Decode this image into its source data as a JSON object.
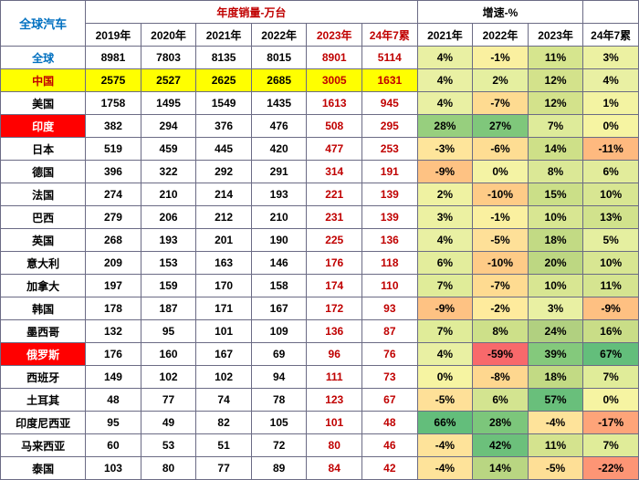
{
  "title_cell": "全球汽车",
  "group_headers": {
    "sales": "年度销量-万台",
    "growth": "增速-%",
    "blank": ""
  },
  "year_cols": {
    "sales": [
      "2019年",
      "2020年",
      "2021年",
      "2022年",
      "2023年",
      "24年7累"
    ],
    "growth": [
      "2021年",
      "2022年",
      "2023年",
      "24年7累"
    ]
  },
  "sales_red_cols": [
    4,
    5
  ],
  "rows": [
    {
      "name": "全球",
      "name_style": {
        "bg": "#ffffff",
        "fg": "#0070c0"
      },
      "sales": [
        8981,
        7803,
        8135,
        8015,
        8901,
        5114
      ],
      "growth": [
        "4%",
        "-1%",
        "11%",
        "3%"
      ],
      "gcol": [
        "#e9f0a3",
        "#faf0a0",
        "#d6e58e",
        "#ecf1a2"
      ]
    },
    {
      "name": "中国",
      "name_style": {
        "bg": "#ffff00",
        "fg": "#c00000"
      },
      "row_bg": "#ffff00",
      "sales": [
        2575,
        2527,
        2625,
        2685,
        3005,
        1631
      ],
      "growth": [
        "4%",
        "2%",
        "12%",
        "4%"
      ],
      "gcol": [
        "#e9f0a3",
        "#e5efa0",
        "#d3e28b",
        "#e9f0a3"
      ]
    },
    {
      "name": "美国",
      "name_style": {
        "bg": "#ffffff",
        "fg": "#000"
      },
      "sales": [
        1758,
        1495,
        1549,
        1435,
        1613,
        945
      ],
      "growth": [
        "4%",
        "-7%",
        "12%",
        "1%"
      ],
      "gcol": [
        "#e9f0a3",
        "#fedb91",
        "#d3e28b",
        "#f3f3a2"
      ]
    },
    {
      "name": "印度",
      "name_style": {
        "bg": "#ff0000",
        "fg": "#ffffff"
      },
      "sales": [
        382,
        294,
        376,
        476,
        508,
        295
      ],
      "growth": [
        "28%",
        "27%",
        "7%",
        "0%"
      ],
      "gcol": [
        "#97cf7e",
        "#7fc77b",
        "#deeb9a",
        "#f6f4a2"
      ]
    },
    {
      "name": "日本",
      "name_style": {
        "bg": "#ffffff",
        "fg": "#000"
      },
      "sales": [
        519,
        459,
        445,
        420,
        477,
        253
      ],
      "growth": [
        "-3%",
        "-6%",
        "14%",
        "-11%"
      ],
      "gcol": [
        "#fee59b",
        "#fedd93",
        "#cee088",
        "#feb97f"
      ]
    },
    {
      "name": "德国",
      "name_style": {
        "bg": "#ffffff",
        "fg": "#000"
      },
      "sales": [
        396,
        322,
        292,
        291,
        314,
        191
      ],
      "growth": [
        "-9%",
        "0%",
        "8%",
        "6%"
      ],
      "gcol": [
        "#fec283",
        "#f4f3a4",
        "#dbe896",
        "#e2ec9b"
      ]
    },
    {
      "name": "法国",
      "name_style": {
        "bg": "#ffffff",
        "fg": "#000"
      },
      "sales": [
        274,
        210,
        214,
        193,
        221,
        139
      ],
      "growth": [
        "2%",
        "-10%",
        "15%",
        "10%"
      ],
      "gcol": [
        "#eff2a2",
        "#fecb87",
        "#cbdf88",
        "#d8e692"
      ]
    },
    {
      "name": "巴西",
      "name_style": {
        "bg": "#ffffff",
        "fg": "#000"
      },
      "sales": [
        279,
        206,
        212,
        210,
        231,
        139
      ],
      "growth": [
        "3%",
        "-1%",
        "10%",
        "13%"
      ],
      "gcol": [
        "#ecf1a2",
        "#faf0a0",
        "#d8e692",
        "#d1e28c"
      ]
    },
    {
      "name": "英国",
      "name_style": {
        "bg": "#ffffff",
        "fg": "#000"
      },
      "sales": [
        268,
        193,
        201,
        190,
        225,
        136
      ],
      "growth": [
        "4%",
        "-5%",
        "18%",
        "5%"
      ],
      "gcol": [
        "#e9f0a3",
        "#fee098",
        "#c2da84",
        "#e5efa0"
      ]
    },
    {
      "name": "意大利",
      "name_style": {
        "bg": "#ffffff",
        "fg": "#000"
      },
      "sales": [
        209,
        153,
        163,
        146,
        176,
        118
      ],
      "growth": [
        "6%",
        "-10%",
        "20%",
        "10%"
      ],
      "gcol": [
        "#e3ed9c",
        "#fecb87",
        "#bdd782",
        "#d8e692"
      ]
    },
    {
      "name": "加拿大",
      "name_style": {
        "bg": "#ffffff",
        "fg": "#000"
      },
      "sales": [
        197,
        159,
        170,
        158,
        174,
        110
      ],
      "growth": [
        "7%",
        "-7%",
        "10%",
        "11%"
      ],
      "gcol": [
        "#e0ec99",
        "#fedb91",
        "#d8e692",
        "#d5e490"
      ]
    },
    {
      "name": "韩国",
      "name_style": {
        "bg": "#ffffff",
        "fg": "#000"
      },
      "sales": [
        178,
        187,
        171,
        167,
        172,
        93
      ],
      "growth": [
        "-9%",
        "-2%",
        "3%",
        "-9%"
      ],
      "gcol": [
        "#fec283",
        "#feeb9d",
        "#e9f0a3",
        "#fec082"
      ]
    },
    {
      "name": "墨西哥",
      "name_style": {
        "bg": "#ffffff",
        "fg": "#000"
      },
      "sales": [
        132,
        95,
        101,
        109,
        136,
        87
      ],
      "growth": [
        "7%",
        "8%",
        "24%",
        "16%"
      ],
      "gcol": [
        "#e0ec99",
        "#cde089",
        "#b1d080",
        "#c9dd87"
      ]
    },
    {
      "name": "俄罗斯",
      "name_style": {
        "bg": "#ff0000",
        "fg": "#ffffff"
      },
      "sales": [
        176,
        160,
        167,
        69,
        96,
        76
      ],
      "growth": [
        "4%",
        "-59%",
        "39%",
        "67%"
      ],
      "gcol": [
        "#e9f0a3",
        "#f8696b",
        "#84c97c",
        "#63be7b"
      ]
    },
    {
      "name": "西班牙",
      "name_style": {
        "bg": "#ffffff",
        "fg": "#000"
      },
      "sales": [
        149,
        102,
        102,
        94,
        111,
        73
      ],
      "growth": [
        "0%",
        "-8%",
        "18%",
        "7%"
      ],
      "gcol": [
        "#f6f4a2",
        "#fed78f",
        "#c2da84",
        "#e0ec99"
      ]
    },
    {
      "name": "土耳其",
      "name_style": {
        "bg": "#ffffff",
        "fg": "#000"
      },
      "sales": [
        48,
        77,
        74,
        78,
        123,
        67
      ],
      "growth": [
        "-5%",
        "6%",
        "57%",
        "0%"
      ],
      "gcol": [
        "#fee098",
        "#d3e490",
        "#69bf7b",
        "#f6f4a2"
      ]
    },
    {
      "name": "印度尼西亚",
      "name_style": {
        "bg": "#ffffff",
        "fg": "#000"
      },
      "sales": [
        95,
        49,
        82,
        105,
        101,
        48
      ],
      "growth": [
        "66%",
        "28%",
        "-4%",
        "-17%"
      ],
      "gcol": [
        "#63be7b",
        "#7cc67b",
        "#fee39a",
        "#fea479"
      ]
    },
    {
      "name": "马来西亚",
      "name_style": {
        "bg": "#ffffff",
        "fg": "#000"
      },
      "sales": [
        60,
        53,
        51,
        72,
        80,
        46
      ],
      "growth": [
        "-4%",
        "42%",
        "11%",
        "7%"
      ],
      "gcol": [
        "#fee39a",
        "#6cc07b",
        "#d4e38e",
        "#e0ec99"
      ]
    },
    {
      "name": "泰国",
      "name_style": {
        "bg": "#ffffff",
        "fg": "#000"
      },
      "sales": [
        103,
        80,
        77,
        89,
        84,
        42
      ],
      "growth": [
        "-4%",
        "14%",
        "-5%",
        "-22%"
      ],
      "gcol": [
        "#fee39a",
        "#b9d682",
        "#fedf96",
        "#fd9575"
      ]
    }
  ],
  "col_widths": {
    "name": 80,
    "sales": 52,
    "growth": 52
  }
}
